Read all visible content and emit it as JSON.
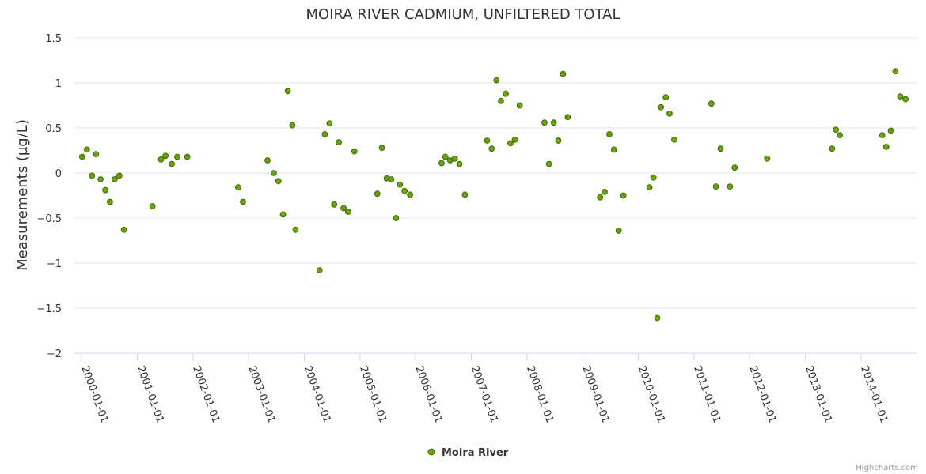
{
  "chart_data": {
    "type": "scatter",
    "title": "MOIRA RIVER CADMIUM, UNFILTERED TOTAL",
    "ylabel": "Measurements (µg/L)",
    "xlabel": "",
    "ylim": [
      -2,
      1.5
    ],
    "yticks": [
      1.5,
      1,
      0.5,
      0,
      -0.5,
      -1,
      -1.5,
      -2
    ],
    "ytick_labels": [
      "1.5",
      "1",
      "0.5",
      "0",
      "−0.5",
      "−1",
      "−1.5",
      "−2"
    ],
    "xlim": [
      "1999-11-15",
      "2014-12-31"
    ],
    "xticks": [
      "2000-01-01",
      "2001-01-01",
      "2002-01-01",
      "2003-01-01",
      "2004-01-01",
      "2005-01-01",
      "2006-01-01",
      "2007-01-01",
      "2008-01-01",
      "2009-01-01",
      "2010-01-01",
      "2011-01-01",
      "2012-01-01",
      "2013-01-01",
      "2014-01-01"
    ],
    "grid": true,
    "legend_position": "bottom-center",
    "colors": {
      "marker_fill": "#6aa30e",
      "marker_stroke": "#3d6d00",
      "grid": "#e6e6e6",
      "axis": "#ccd6eb"
    },
    "series": [
      {
        "name": "Moira River",
        "points": [
          [
            "2000-01-05",
            0.18
          ],
          [
            "2000-02-05",
            0.26
          ],
          [
            "2000-03-10",
            -0.03
          ],
          [
            "2000-04-05",
            0.21
          ],
          [
            "2000-05-05",
            -0.07
          ],
          [
            "2000-06-05",
            -0.19
          ],
          [
            "2000-07-05",
            -0.32
          ],
          [
            "2000-08-05",
            -0.07
          ],
          [
            "2000-09-05",
            -0.03
          ],
          [
            "2000-10-05",
            -0.63
          ],
          [
            "2001-04-10",
            -0.37
          ],
          [
            "2001-06-05",
            0.15
          ],
          [
            "2001-07-05",
            0.19
          ],
          [
            "2001-08-15",
            0.1
          ],
          [
            "2001-09-20",
            0.18
          ],
          [
            "2001-11-25",
            0.18
          ],
          [
            "2002-10-25",
            -0.16
          ],
          [
            "2002-11-25",
            -0.32
          ],
          [
            "2003-05-05",
            0.14
          ],
          [
            "2003-06-15",
            0.0
          ],
          [
            "2003-07-15",
            -0.09
          ],
          [
            "2003-08-15",
            -0.46
          ],
          [
            "2003-09-15",
            0.91
          ],
          [
            "2003-10-15",
            0.53
          ],
          [
            "2003-11-05",
            -0.63
          ],
          [
            "2004-04-10",
            -1.08
          ],
          [
            "2004-05-15",
            0.43
          ],
          [
            "2004-06-15",
            0.55
          ],
          [
            "2004-07-15",
            -0.35
          ],
          [
            "2004-08-15",
            0.34
          ],
          [
            "2004-09-15",
            -0.39
          ],
          [
            "2004-10-15",
            -0.43
          ],
          [
            "2004-11-25",
            0.24
          ],
          [
            "2005-04-25",
            -0.23
          ],
          [
            "2005-05-25",
            0.28
          ],
          [
            "2005-06-25",
            -0.06
          ],
          [
            "2005-07-25",
            -0.07
          ],
          [
            "2005-08-25",
            -0.5
          ],
          [
            "2005-09-20",
            -0.13
          ],
          [
            "2005-10-20",
            -0.2
          ],
          [
            "2005-11-25",
            -0.24
          ],
          [
            "2006-06-20",
            0.11
          ],
          [
            "2006-07-15",
            0.18
          ],
          [
            "2006-08-15",
            0.14
          ],
          [
            "2006-09-15",
            0.16
          ],
          [
            "2006-10-15",
            0.1
          ],
          [
            "2006-11-20",
            -0.24
          ],
          [
            "2007-04-15",
            0.36
          ],
          [
            "2007-05-15",
            0.27
          ],
          [
            "2007-06-15",
            1.03
          ],
          [
            "2007-07-15",
            0.8
          ],
          [
            "2007-08-15",
            0.88
          ],
          [
            "2007-09-15",
            0.33
          ],
          [
            "2007-10-15",
            0.37
          ],
          [
            "2007-11-15",
            0.75
          ],
          [
            "2008-04-25",
            0.56
          ],
          [
            "2008-05-25",
            0.1
          ],
          [
            "2008-06-25",
            0.56
          ],
          [
            "2008-07-25",
            0.36
          ],
          [
            "2008-08-25",
            1.1
          ],
          [
            "2008-09-25",
            0.62
          ],
          [
            "2009-04-25",
            -0.27
          ],
          [
            "2009-05-25",
            -0.21
          ],
          [
            "2009-06-25",
            0.43
          ],
          [
            "2009-07-25",
            0.26
          ],
          [
            "2009-08-25",
            -0.64
          ],
          [
            "2009-09-25",
            -0.25
          ],
          [
            "2010-03-15",
            -0.16
          ],
          [
            "2010-04-10",
            -0.05
          ],
          [
            "2010-05-05",
            -1.61
          ],
          [
            "2010-05-30",
            0.73
          ],
          [
            "2010-06-30",
            0.84
          ],
          [
            "2010-07-25",
            0.66
          ],
          [
            "2010-08-25",
            0.37
          ],
          [
            "2011-04-25",
            0.77
          ],
          [
            "2011-05-25",
            -0.15
          ],
          [
            "2011-06-25",
            0.27
          ],
          [
            "2011-08-25",
            -0.15
          ],
          [
            "2011-09-25",
            0.06
          ],
          [
            "2012-04-25",
            0.16
          ],
          [
            "2013-06-25",
            0.27
          ],
          [
            "2013-07-20",
            0.48
          ],
          [
            "2013-08-15",
            0.42
          ],
          [
            "2014-05-20",
            0.42
          ],
          [
            "2014-06-15",
            0.29
          ],
          [
            "2014-07-15",
            0.47
          ],
          [
            "2014-08-15",
            1.13
          ],
          [
            "2014-09-15",
            0.85
          ],
          [
            "2014-10-20",
            0.82
          ]
        ]
      }
    ],
    "credits": "Highcharts.com"
  }
}
